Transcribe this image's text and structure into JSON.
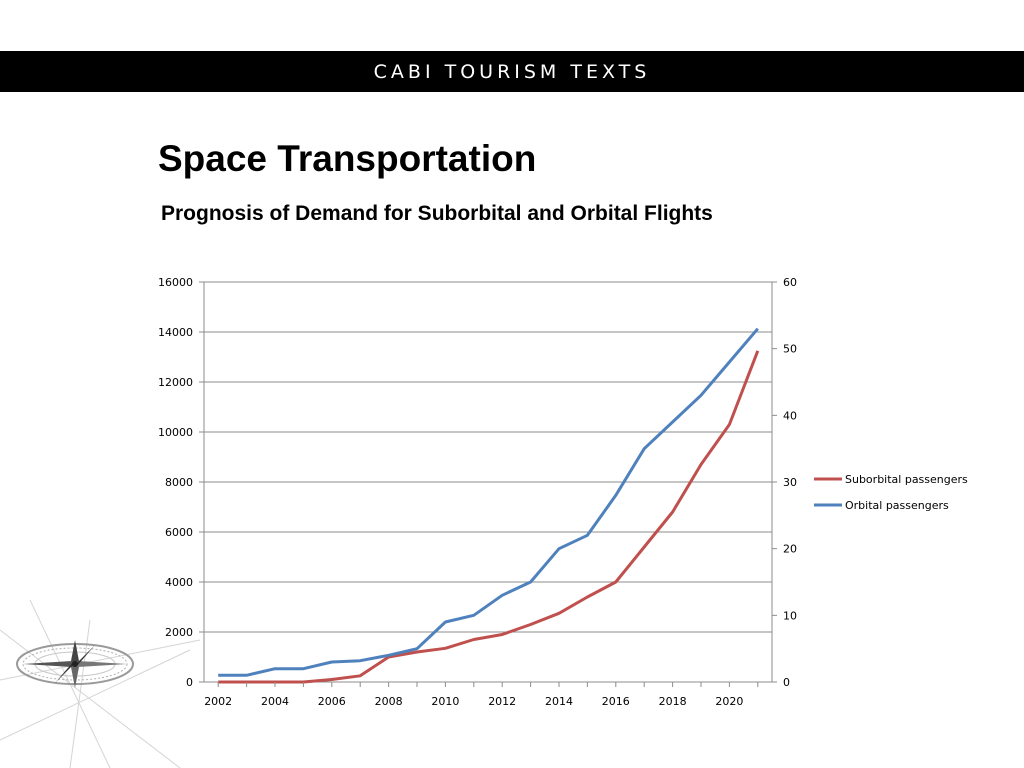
{
  "banner": {
    "text": "CABI TOURISM TEXTS"
  },
  "slide": {
    "title": "Space Transportation",
    "subtitle": "Prognosis of Demand for Suborbital and Orbital Flights"
  },
  "colors": {
    "suborbital": "#c0504d",
    "orbital": "#4f81bd",
    "grid": "#8c8c8c",
    "banner": "#000000"
  },
  "icons": {
    "decoration": "compass-rose-icon"
  },
  "chart_data": {
    "type": "line",
    "x": [
      2002,
      2003,
      2004,
      2005,
      2006,
      2007,
      2008,
      2009,
      2010,
      2011,
      2012,
      2013,
      2014,
      2015,
      2016,
      2017,
      2018,
      2019,
      2020,
      2021
    ],
    "x_tick_labels": [
      "2002",
      "2004",
      "2006",
      "2008",
      "2010",
      "2012",
      "2014",
      "2016",
      "2018",
      "2020"
    ],
    "xlim": [
      2001.5,
      2021.5
    ],
    "y_left": {
      "range": [
        0,
        16000
      ],
      "ticks": [
        "0",
        "2000",
        "4000",
        "6000",
        "8000",
        "10000",
        "12000",
        "14000",
        "16000"
      ]
    },
    "y_right": {
      "range": [
        0,
        60
      ],
      "ticks": [
        "0",
        "10",
        "20",
        "30",
        "40",
        "50",
        "60"
      ]
    },
    "grid": true,
    "legend_position": "right",
    "series": [
      {
        "name": "Suborbital passengers",
        "axis": "left",
        "values": [
          0,
          0,
          0,
          0,
          100,
          250,
          1000,
          1200,
          1350,
          1700,
          1900,
          2300,
          2750,
          3400,
          4000,
          5400,
          6800,
          8700,
          10300,
          13250
        ]
      },
      {
        "name": "Orbital passengers",
        "axis": "right",
        "values": [
          1,
          1,
          2,
          2,
          3,
          3.2,
          4,
          5,
          9,
          10,
          13,
          15,
          20,
          22,
          28,
          35,
          39,
          43,
          48,
          53
        ]
      }
    ]
  }
}
